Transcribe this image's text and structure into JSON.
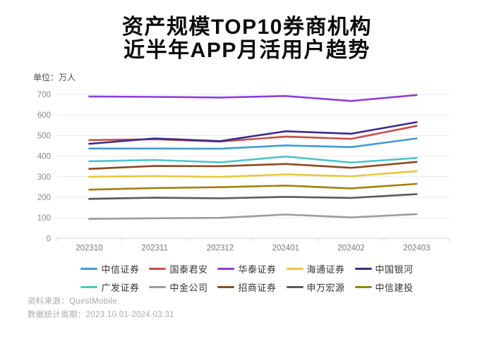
{
  "title": {
    "line1": "资产规模TOP10券商机构",
    "line2": "近半年APP月活用户趋势"
  },
  "chart_data": {
    "type": "line",
    "title": "资产规模TOP10券商机构 近半年APP月活用户趋势",
    "unit_label": "单位：万人",
    "ylabel": "万人",
    "xlabel": "",
    "ylim": [
      0,
      700
    ],
    "yticks": [
      0,
      100,
      200,
      300,
      400,
      500,
      600,
      700
    ],
    "grid": "horizontal",
    "legend_position": "bottom",
    "categories": [
      "202310",
      "202311",
      "202312",
      "202401",
      "202402",
      "202403"
    ],
    "series": [
      {
        "name": "中信证券",
        "color": "#3E9CD4",
        "values": [
          437,
          437,
          436,
          452,
          444,
          486
        ]
      },
      {
        "name": "国泰君安",
        "color": "#C4504B",
        "values": [
          478,
          482,
          471,
          495,
          484,
          547
        ]
      },
      {
        "name": "华泰证券",
        "color": "#8B3FD6",
        "values": [
          690,
          688,
          685,
          692,
          668,
          697
        ]
      },
      {
        "name": "海通证券",
        "color": "#E9C73F",
        "values": [
          300,
          303,
          299,
          311,
          302,
          327
        ]
      },
      {
        "name": "中国银河",
        "color": "#3B2B8C",
        "values": [
          460,
          486,
          473,
          521,
          509,
          565
        ]
      },
      {
        "name": "广发证券",
        "color": "#4EC4C9",
        "values": [
          375,
          381,
          370,
          398,
          369,
          391
        ]
      },
      {
        "name": "中金公司",
        "color": "#9C9C9C",
        "values": [
          95,
          98,
          100,
          116,
          102,
          118
        ]
      },
      {
        "name": "招商证券",
        "color": "#8B4A22",
        "values": [
          338,
          352,
          351,
          362,
          343,
          372
        ]
      },
      {
        "name": "申万宏源",
        "color": "#5A5A5A",
        "values": [
          192,
          198,
          195,
          202,
          197,
          215
        ]
      },
      {
        "name": "中信建投",
        "color": "#A1800D",
        "values": [
          237,
          245,
          249,
          257,
          243,
          265
        ]
      }
    ],
    "legend_rows": [
      [
        "中信证券",
        "国泰君安",
        "华泰证券",
        "海通证券",
        "中国银河"
      ],
      [
        "广发证券",
        "中金公司",
        "招商证券",
        "申万宏源",
        "中信建投"
      ]
    ],
    "colors": {
      "grid_line": "#e9e9e9",
      "axis_line": "#d6d6d6",
      "ytick_label": "#8a8a8a",
      "xtick_label": "#777777"
    }
  },
  "footer": {
    "source": "资料来源：QuestMobile",
    "period": "数据统计周期：2023.10.01-2024.03.31"
  }
}
